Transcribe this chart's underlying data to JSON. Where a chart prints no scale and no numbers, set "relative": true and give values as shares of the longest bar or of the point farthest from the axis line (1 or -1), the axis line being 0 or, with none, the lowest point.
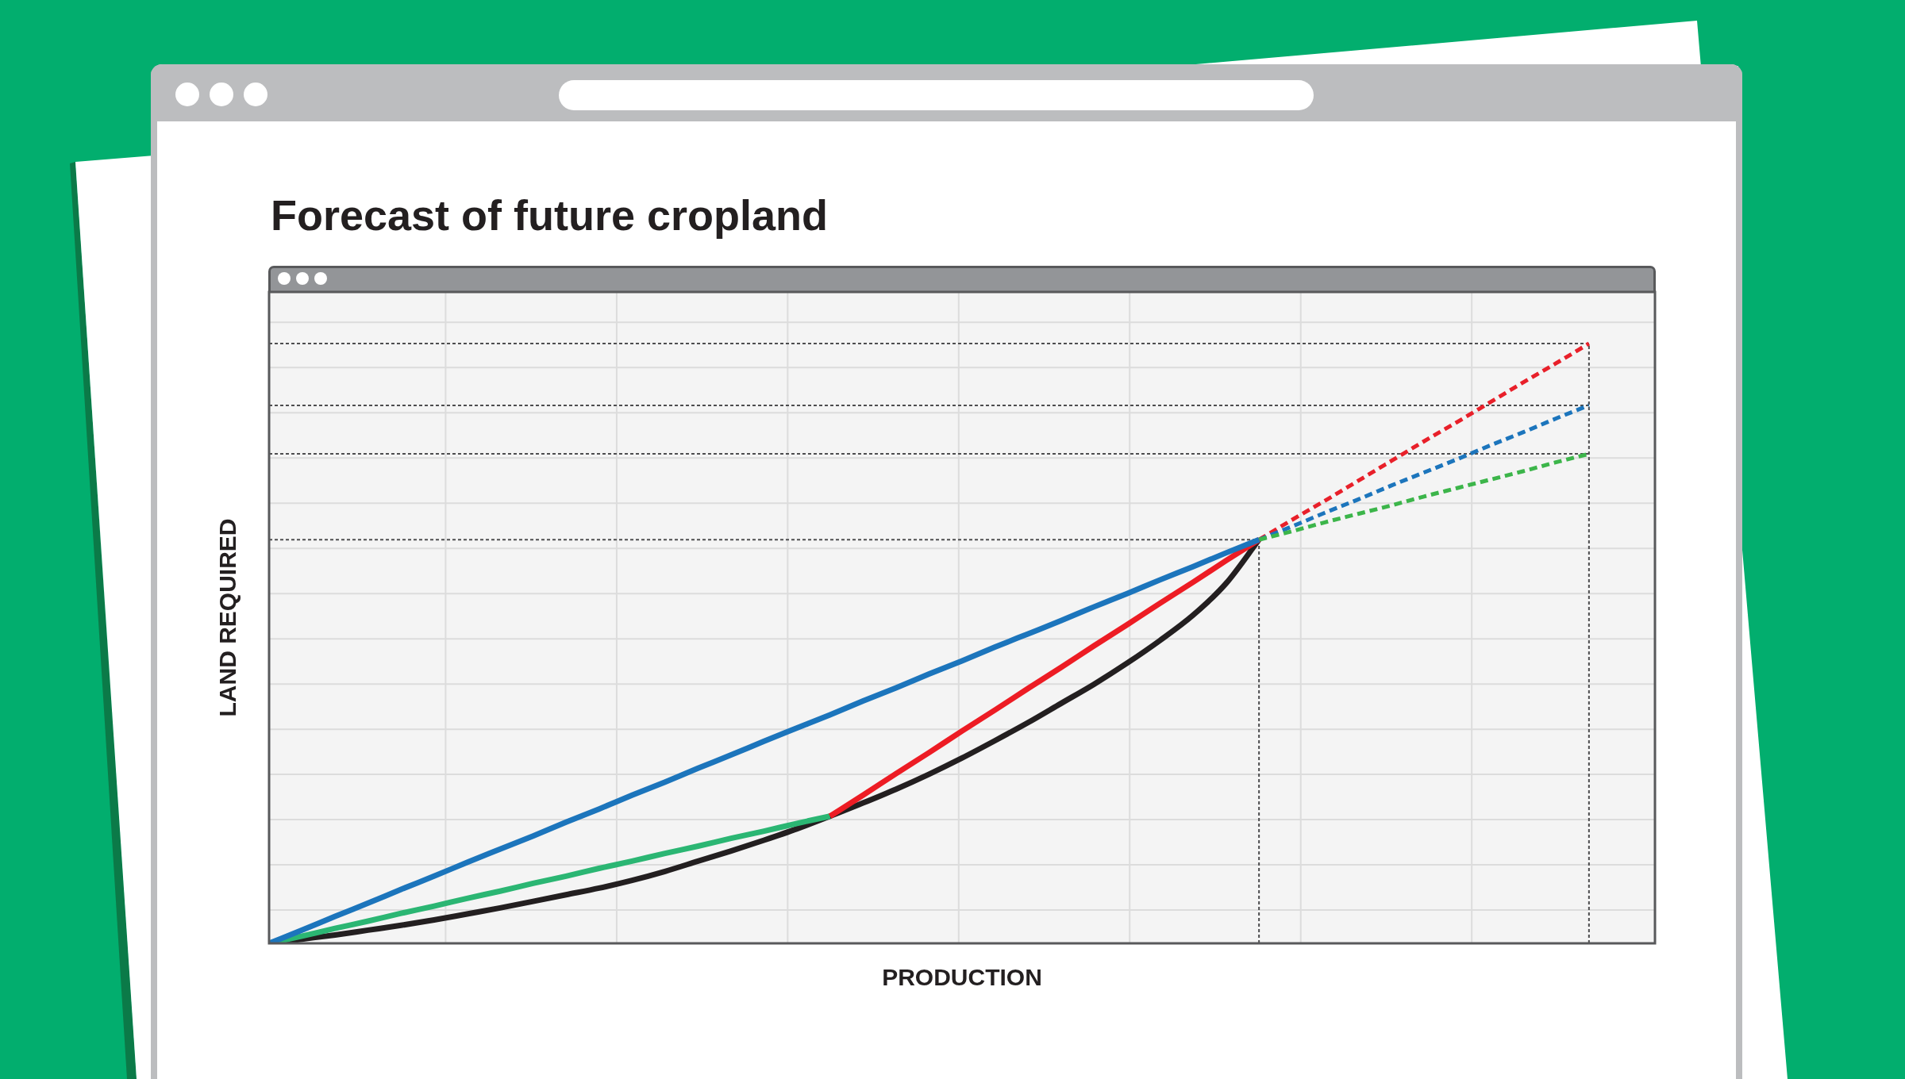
{
  "chart_data": {
    "type": "line",
    "title": "Forecast of future cropland",
    "xlabel": "PRODUCTION",
    "ylabel": "LAND REQUIRED",
    "relative": true,
    "grid": true,
    "marker": "none",
    "categories": [
      null,
      null,
      null,
      null,
      null,
      null,
      null,
      null,
      null,
      null,
      null,
      null,
      null,
      null,
      null,
      null,
      null,
      null,
      null,
      null,
      null,
      null,
      null,
      null,
      null,
      null,
      null,
      null,
      null,
      null,
      null,
      null,
      null,
      null,
      null,
      null,
      null,
      null,
      null,
      null,
      null,
      null,
      null
    ],
    "series": [
      {
        "color": "#1c75bc",
        "line_style": "solid",
        "values": [
          0,
          0.022,
          0.045,
          0.067,
          0.09,
          0.112,
          0.135,
          0.157,
          0.179,
          0.202,
          0.224,
          0.247,
          0.269,
          0.292,
          0.314,
          0.337,
          0.359,
          0.381,
          0.404,
          0.426,
          0.449,
          0.471,
          0.494,
          0.516,
          0.538,
          0.561,
          0.583,
          0.606,
          0.628,
          0.651,
          0.673,
          null,
          null,
          null,
          null,
          null,
          null,
          null,
          null,
          null,
          null,
          null,
          null
        ]
      },
      {
        "color": "#ed1c24",
        "line_style": "solid",
        "values": [
          null,
          null,
          null,
          null,
          null,
          null,
          null,
          null,
          null,
          null,
          null,
          null,
          null,
          null,
          null,
          null,
          null,
          0.212,
          0.247,
          0.283,
          0.318,
          0.354,
          0.389,
          0.425,
          0.46,
          0.496,
          0.531,
          0.567,
          0.602,
          0.638,
          0.673,
          null,
          null,
          null,
          null,
          null,
          null,
          null,
          null,
          null,
          null,
          null,
          null
        ]
      },
      {
        "color": "#3cb54a",
        "line_style": "dashed",
        "values": [
          null,
          null,
          null,
          null,
          null,
          null,
          null,
          null,
          null,
          null,
          null,
          null,
          null,
          null,
          null,
          null,
          null,
          null,
          null,
          null,
          null,
          null,
          null,
          null,
          null,
          null,
          null,
          null,
          null,
          null,
          0.673,
          0.687,
          0.702,
          0.716,
          0.73,
          0.745,
          0.759,
          0.773,
          0.787,
          0.802,
          0.816,
          null,
          null
        ]
      },
      {
        "color": "#1c75bc",
        "line_style": "dashed",
        "values": [
          null,
          null,
          null,
          null,
          null,
          null,
          null,
          null,
          null,
          null,
          null,
          null,
          null,
          null,
          null,
          null,
          null,
          null,
          null,
          null,
          null,
          null,
          null,
          null,
          null,
          null,
          null,
          null,
          null,
          null,
          0.673,
          0.695,
          0.718,
          0.74,
          0.763,
          0.785,
          0.807,
          0.83,
          0.852,
          0.875,
          0.897,
          null,
          null
        ]
      },
      {
        "color": "#e8202a",
        "line_style": "dashed",
        "values": [
          null,
          null,
          null,
          null,
          null,
          null,
          null,
          null,
          null,
          null,
          null,
          null,
          null,
          null,
          null,
          null,
          null,
          null,
          null,
          null,
          null,
          null,
          null,
          null,
          null,
          null,
          null,
          null,
          null,
          null,
          0.673,
          0.706,
          0.738,
          0.771,
          0.804,
          0.837,
          0.869,
          0.902,
          0.935,
          0.967,
          1,
          null,
          null
        ]
      },
      {
        "color": "#2bb673",
        "line_style": "solid",
        "values": [
          0,
          0.012,
          0.025,
          0.037,
          0.05,
          0.062,
          0.075,
          0.087,
          0.1,
          0.112,
          0.125,
          0.137,
          0.15,
          0.162,
          0.175,
          0.187,
          0.2,
          0.212,
          null,
          null,
          null,
          null,
          null,
          null,
          null,
          null,
          null,
          null,
          null,
          null,
          null,
          null,
          null,
          null,
          null,
          null,
          null,
          null,
          null,
          null,
          null,
          null,
          null
        ]
      },
      {
        "color": "#231f20",
        "line_style": "solid",
        "values": [
          0,
          0.007,
          0.014,
          0.022,
          0.03,
          0.039,
          0.049,
          0.059,
          0.07,
          0.081,
          0.092,
          0.105,
          0.12,
          0.137,
          0.154,
          0.172,
          0.191,
          0.212,
          0.234,
          0.257,
          0.282,
          0.309,
          0.338,
          0.368,
          0.4,
          0.432,
          0.467,
          0.505,
          0.547,
          0.6,
          0.673,
          null,
          null,
          null,
          null,
          null,
          null,
          null,
          null,
          null,
          null,
          null,
          null
        ]
      }
    ],
    "ref_lines": [
      {
        "axis": "y",
        "value": 1,
        "color": "#4d4d4f",
        "line_style": "dashed"
      },
      {
        "axis": "y",
        "value": 0.897,
        "color": "#4d4d4f",
        "line_style": "dashed"
      },
      {
        "axis": "y",
        "value": 0.816,
        "color": "#4d4d4f",
        "line_style": "dashed"
      },
      {
        "axis": "y",
        "value": 0.673,
        "color": "#4d4d4f",
        "line_style": "dashed"
      }
    ]
  }
}
